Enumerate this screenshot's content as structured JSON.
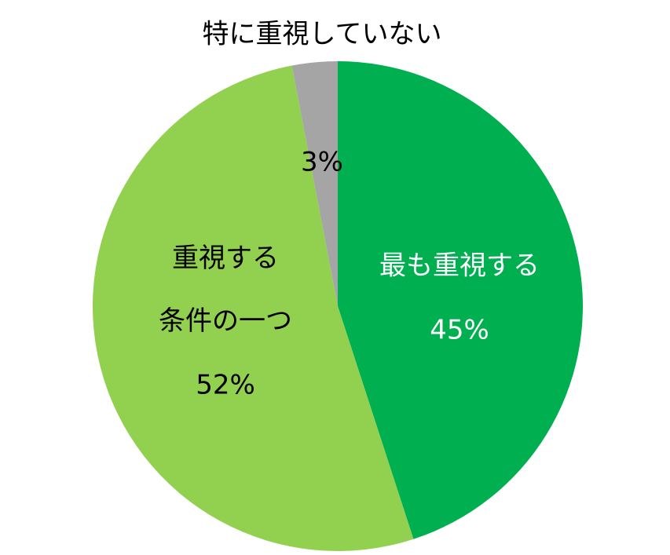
{
  "chart_data": {
    "type": "pie",
    "categories": [
      "最も重視する",
      "重視する\n条件の一つ",
      "特に重視していない"
    ],
    "values": [
      45,
      52,
      3
    ],
    "value_labels": [
      "45%",
      "52%",
      "3%"
    ],
    "colors": [
      "#00b050",
      "#92d050",
      "#a5a5a5"
    ],
    "label_colors": [
      "#ffffff",
      "#000000",
      "#000000"
    ],
    "start_angle": 0,
    "direction": "clockwise"
  }
}
